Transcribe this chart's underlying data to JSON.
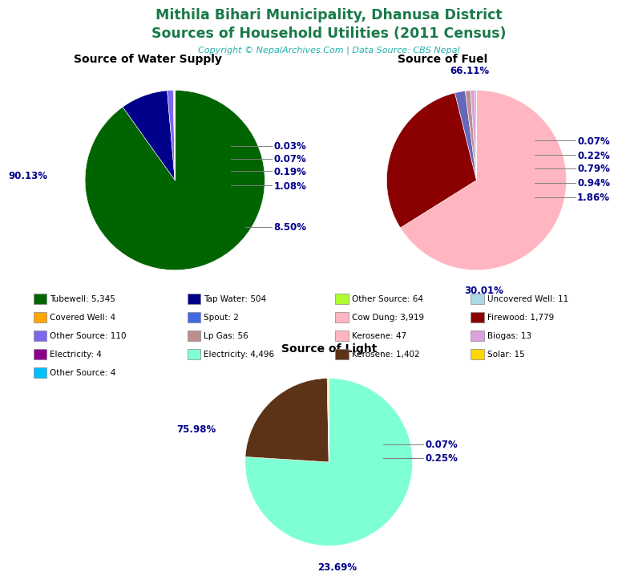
{
  "title_line1": "Mithila Bihari Municipality, Dhanusa District",
  "title_line2": "Sources of Household Utilities (2011 Census)",
  "title_color": "#1a7a4a",
  "copyright_text": "Copyright © NepalArchives.Com | Data Source: CBS Nepal",
  "copyright_color": "#20b2aa",
  "water_title": "Source of Water Supply",
  "water_pct": [
    90.13,
    8.5,
    1.08,
    0.19,
    0.07,
    0.03
  ],
  "water_colors": [
    "#006400",
    "#00008B",
    "#7B68EE",
    "#ADD8E6",
    "#FFA500",
    "#ADFF2F"
  ],
  "water_labels": [
    "90.13%",
    "8.50%",
    "1.08%",
    "0.19%",
    "0.07%",
    "0.03%"
  ],
  "fuel_title": "Source of Fuel",
  "fuel_pct": [
    66.11,
    30.01,
    1.86,
    0.94,
    0.79,
    0.22,
    0.07
  ],
  "fuel_colors": [
    "#FFB6C1",
    "#8B0000",
    "#6666BB",
    "#BC8F8F",
    "#DDA0DD",
    "#C08080",
    "#ADD8E6"
  ],
  "fuel_labels": [
    "66.11%",
    "30.01%",
    "1.86%",
    "0.94%",
    "0.79%",
    "0.22%",
    "0.07%"
  ],
  "light_title": "Source of Light",
  "light_pct": [
    75.98,
    23.69,
    0.25,
    0.07
  ],
  "light_colors": [
    "#7FFFD4",
    "#5C3317",
    "#DEB887",
    "#FFD700"
  ],
  "light_labels": [
    "75.98%",
    "23.69%",
    "0.25%",
    "0.07%"
  ],
  "legend": [
    [
      "Tubewell: 5,345",
      "#006400",
      "Tap Water: 504",
      "#00008B",
      "Other Source: 64",
      "#ADFF2F",
      "Uncovered Well: 11",
      "#ADD8E6"
    ],
    [
      "Covered Well: 4",
      "#FFA500",
      "Spout: 2",
      "#4169E1",
      "Cow Dung: 3,919",
      "#FFB6C1",
      "Firewood: 1,779",
      "#8B0000"
    ],
    [
      "Other Source: 110",
      "#7B68EE",
      "Lp Gas: 56",
      "#BC8F8F",
      "Kerosene: 47",
      "#FFB6C1",
      "Biogas: 13",
      "#DDA0DD"
    ],
    [
      "Electricity: 4",
      "#8B008B",
      "Electricity: 4,496",
      "#7FFFD4",
      "Kerosene: 1,402",
      "#5C3317",
      "Solar: 15",
      "#FFD700"
    ],
    [
      "Other Source: 4",
      "#00BFFF",
      "",
      "",
      "",
      "",
      "",
      ""
    ]
  ]
}
